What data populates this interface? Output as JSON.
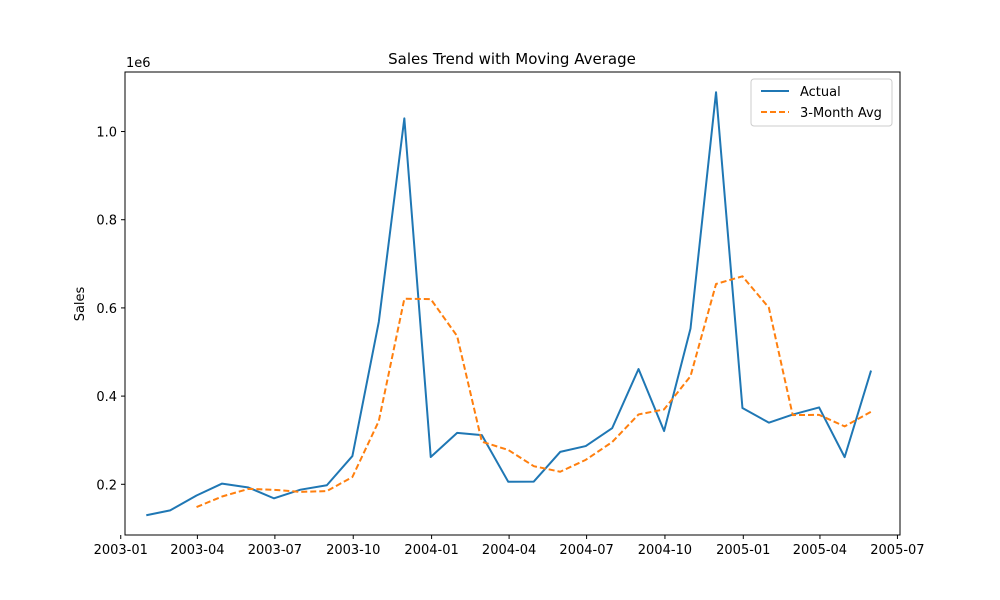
{
  "chart_data": {
    "type": "line",
    "title": "Sales Trend with Moving Average",
    "xlabel": "",
    "ylabel": "Sales",
    "y_offset_label": "1e6",
    "y_scale": 1000000,
    "xlim": [
      "2003-01-06",
      "2005-07-04"
    ],
    "ylim": [
      0.085,
      1.135
    ],
    "x_ticks": [
      {
        "date": "2003-01-01",
        "label": "2003-01"
      },
      {
        "date": "2003-04-01",
        "label": "2003-04"
      },
      {
        "date": "2003-07-01",
        "label": "2003-07"
      },
      {
        "date": "2003-10-01",
        "label": "2003-10"
      },
      {
        "date": "2004-01-01",
        "label": "2004-01"
      },
      {
        "date": "2004-04-01",
        "label": "2004-04"
      },
      {
        "date": "2004-07-01",
        "label": "2004-07"
      },
      {
        "date": "2004-10-01",
        "label": "2004-10"
      },
      {
        "date": "2005-01-01",
        "label": "2005-01"
      },
      {
        "date": "2005-04-01",
        "label": "2005-04"
      },
      {
        "date": "2005-07-01",
        "label": "2005-07"
      }
    ],
    "y_ticks": [
      {
        "value": 0.2,
        "label": "0.2"
      },
      {
        "value": 0.4,
        "label": "0.4"
      },
      {
        "value": 0.6,
        "label": "0.6"
      },
      {
        "value": 0.8,
        "label": "0.8"
      },
      {
        "value": 1.0,
        "label": "1.0"
      }
    ],
    "x": [
      "2003-01-31",
      "2003-02-28",
      "2003-03-31",
      "2003-04-30",
      "2003-05-31",
      "2003-06-30",
      "2003-07-31",
      "2003-08-31",
      "2003-09-30",
      "2003-10-31",
      "2003-11-30",
      "2003-12-31",
      "2004-01-31",
      "2004-02-29",
      "2004-03-31",
      "2004-04-30",
      "2004-05-31",
      "2004-06-30",
      "2004-07-31",
      "2004-08-31",
      "2004-09-30",
      "2004-10-31",
      "2004-11-30",
      "2004-12-31",
      "2005-01-31",
      "2005-02-28",
      "2005-03-31",
      "2005-04-30",
      "2005-05-31"
    ],
    "series": [
      {
        "name": "Actual",
        "color": "#1f77b4",
        "style": "solid",
        "values": [
          129753,
          140836,
          174505,
          201610,
          192673,
          168082,
          187731,
          197810,
          263973,
          568291,
          1029838,
          261798,
          316577,
          311419,
          205734,
          206148,
          273438,
          286674,
          327144,
          461502,
          320750,
          552924,
          1089048,
          372942,
          339783,
          358186,
          374262,
          261633,
          457861
        ]
      },
      {
        "name": "3-Month Avg",
        "color": "#ff7f0e",
        "style": "dashed",
        "values": [
          null,
          null,
          148365,
          172317,
          189596,
          187455,
          182829,
          184541,
          216505,
          343358,
          620701,
          619976,
          536071,
          296598,
          277910,
          241100,
          228440,
          255420,
          295752,
          358440,
          369799,
          445059,
          654241,
          671638,
          600591,
          356970,
          357410,
          331360,
          364585
        ]
      }
    ],
    "legend": {
      "position": "top-right"
    },
    "grid": false
  }
}
